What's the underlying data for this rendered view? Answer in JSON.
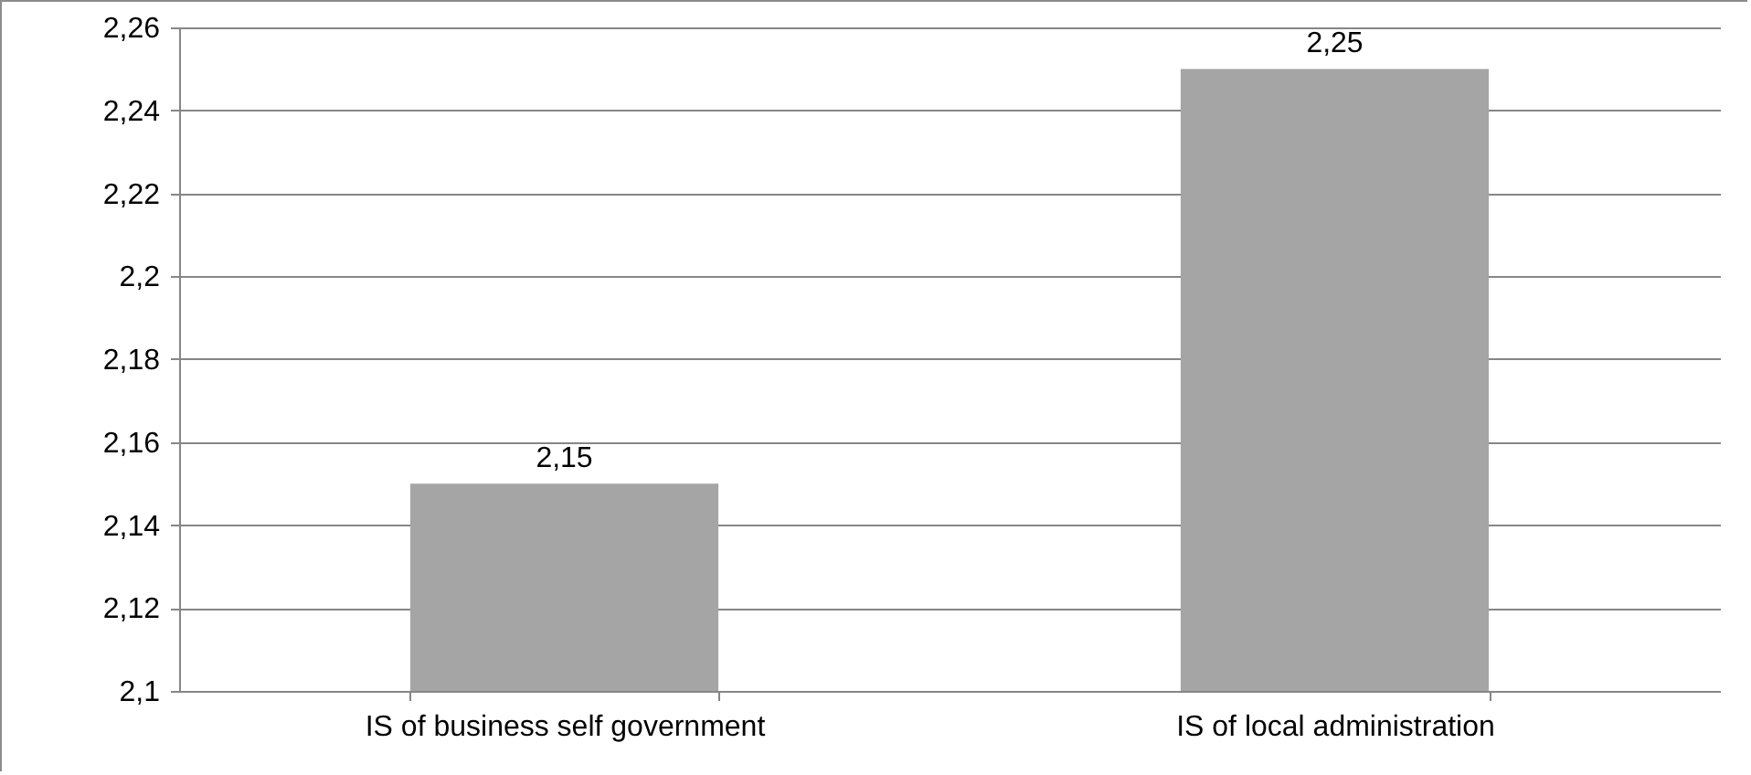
{
  "chart_data": {
    "type": "bar",
    "categories": [
      "IS of business self government",
      "IS of local administration"
    ],
    "values": [
      2.15,
      2.25
    ],
    "color": "#a5a5a5",
    "value_labels": [
      "2,15",
      "2,25"
    ],
    "ylim": [
      2.1,
      2.26
    ],
    "yticks": [
      {
        "value": 2.1,
        "label": "2,1"
      },
      {
        "value": 2.12,
        "label": "2,12"
      },
      {
        "value": 2.14,
        "label": "2,14"
      },
      {
        "value": 2.16,
        "label": "2,16"
      },
      {
        "value": 2.18,
        "label": "2,18"
      },
      {
        "value": 2.2,
        "label": "2,2"
      },
      {
        "value": 2.22,
        "label": "2,22"
      },
      {
        "value": 2.24,
        "label": "2,24"
      },
      {
        "value": 2.26,
        "label": "2,26"
      }
    ],
    "grid": "y"
  }
}
